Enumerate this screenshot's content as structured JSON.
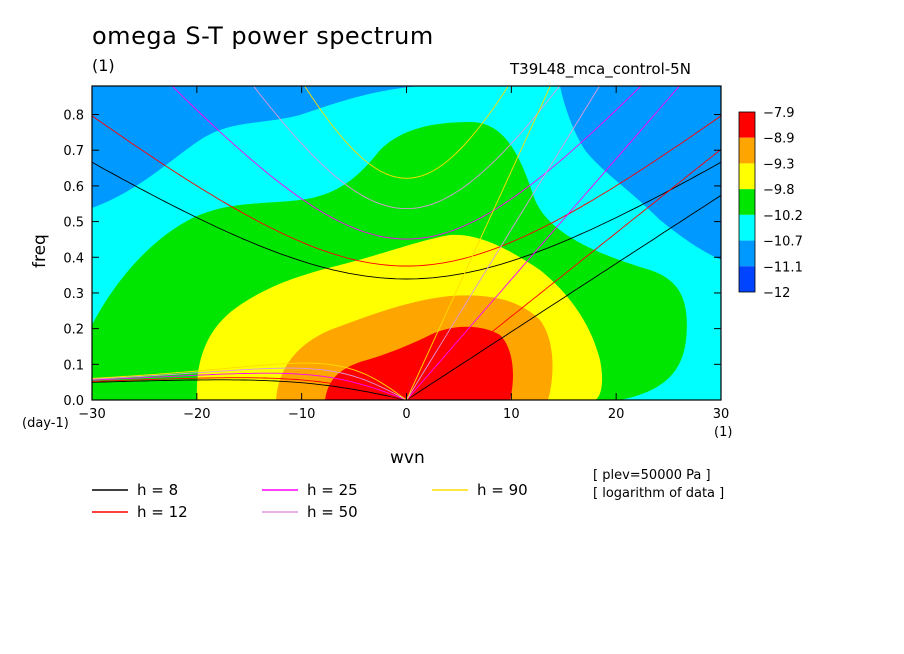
{
  "title": "omega S-T power spectrum",
  "units_label": "(1)",
  "run_label": "T39L48_mca_control-5N",
  "notes": [
    "[ plev=50000 Pa ]",
    "[ logarithm of data ]"
  ],
  "chart_data": {
    "type": "heatmap",
    "xlabel": "wvn",
    "ylabel": "freq",
    "x_unit": "(1)",
    "y_unit": "(day-1)",
    "xlim": [
      -30,
      30
    ],
    "ylim": [
      0,
      0.88
    ],
    "x_ticks": [
      -30,
      -20,
      -10,
      0,
      10,
      20,
      30
    ],
    "y_ticks": [
      0.0,
      0.1,
      0.2,
      0.3,
      0.4,
      0.5,
      0.6,
      0.7,
      0.8
    ],
    "colorbar": {
      "tick_labels": [
        "-7.9",
        "-8.9",
        "-9.3",
        "-9.8",
        "-10.2",
        "-10.7",
        "-11.1",
        "-12"
      ],
      "colors": [
        "#ff0000",
        "#ffa500",
        "#ffff00",
        "#00e600",
        "#00ffff",
        "#0099ff",
        "#0044ff"
      ]
    },
    "dispersion_curves": [
      {
        "name": "h =  8",
        "h": 8,
        "color": "#000000"
      },
      {
        "name": "h = 12",
        "h": 12,
        "color": "#ff0000"
      },
      {
        "name": "h = 25",
        "h": 25,
        "color": "#ff00ff"
      },
      {
        "name": "h = 50",
        "h": 50,
        "color": "#dd99dd"
      },
      {
        "name": "h = 90",
        "h": 90,
        "color": "#ffdd00"
      }
    ]
  }
}
